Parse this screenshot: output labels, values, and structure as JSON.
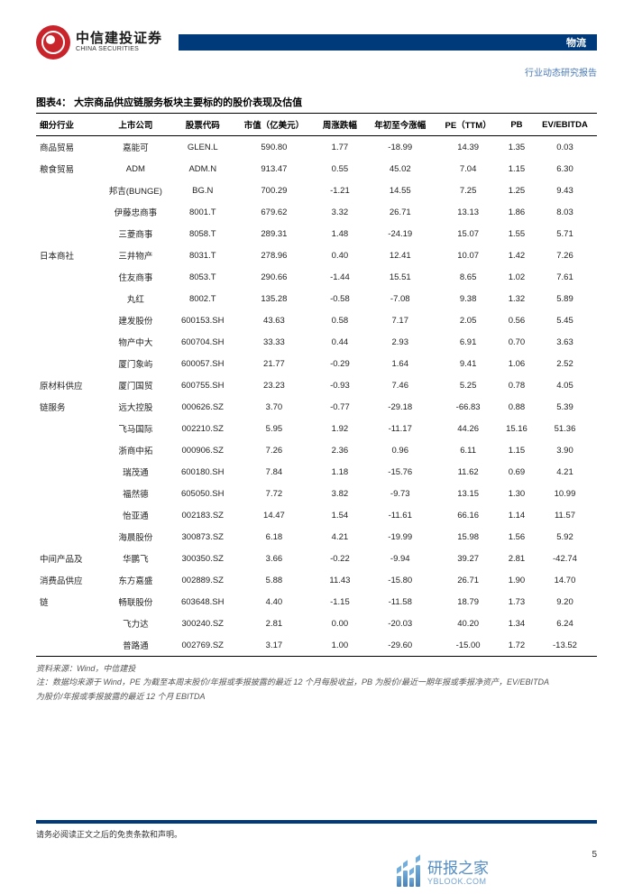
{
  "header": {
    "logo_cn": "中信建投证券",
    "logo_en": "CHINA SECURITIES",
    "tag": "物流",
    "subtitle": "行业动态研究报告"
  },
  "table": {
    "title": "图表4：  大宗商品供应链服务板块主要标的的股价表现及估值",
    "columns": [
      "细分行业",
      "上市公司",
      "股票代码",
      "市值（亿美元）",
      "周涨跌幅",
      "年初至今涨幅",
      "PE（TTM）",
      "PB",
      "EV/EBITDA"
    ],
    "rows": [
      {
        "cat": "商品贸易",
        "rs": 1,
        "c": [
          "嘉能可",
          "GLEN.L",
          "590.80",
          "1.77",
          "-18.99",
          "14.39",
          "1.35",
          "0.03"
        ]
      },
      {
        "cat": "粮食贸易",
        "rs": 2,
        "c": [
          "ADM",
          "ADM.N",
          "913.47",
          "0.55",
          "45.02",
          "7.04",
          "1.15",
          "6.30"
        ]
      },
      {
        "cat": "",
        "rs": 0,
        "c": [
          "邦吉(BUNGE)",
          "BG.N",
          "700.29",
          "-1.21",
          "14.55",
          "7.25",
          "1.25",
          "9.43"
        ]
      },
      {
        "cat": "",
        "rs": 0,
        "c": [
          "伊藤忠商事",
          "8001.T",
          "679.62",
          "3.32",
          "26.71",
          "13.13",
          "1.86",
          "8.03"
        ]
      },
      {
        "cat": "",
        "rs": 0,
        "c": [
          "三菱商事",
          "8058.T",
          "289.31",
          "1.48",
          "-24.19",
          "15.07",
          "1.55",
          "5.71"
        ]
      },
      {
        "cat": "日本商社",
        "rs": 1,
        "c": [
          "三井物产",
          "8031.T",
          "278.96",
          "0.40",
          "12.41",
          "10.07",
          "1.42",
          "7.26"
        ]
      },
      {
        "cat": "",
        "rs": 0,
        "c": [
          "住友商事",
          "8053.T",
          "290.66",
          "-1.44",
          "15.51",
          "8.65",
          "1.02",
          "7.61"
        ]
      },
      {
        "cat": "",
        "rs": 0,
        "c": [
          "丸红",
          "8002.T",
          "135.28",
          "-0.58",
          "-7.08",
          "9.38",
          "1.32",
          "5.89"
        ]
      },
      {
        "cat": "",
        "rs": 0,
        "c": [
          "建发股份",
          "600153.SH",
          "43.63",
          "0.58",
          "7.17",
          "2.05",
          "0.56",
          "5.45"
        ]
      },
      {
        "cat": "",
        "rs": 0,
        "c": [
          "物产中大",
          "600704.SH",
          "33.33",
          "0.44",
          "2.93",
          "6.91",
          "0.70",
          "3.63"
        ]
      },
      {
        "cat": "",
        "rs": 0,
        "c": [
          "厦门象屿",
          "600057.SH",
          "21.77",
          "-0.29",
          "1.64",
          "9.41",
          "1.06",
          "2.52"
        ]
      },
      {
        "cat": "原材料供应",
        "rs": 1,
        "c": [
          "厦门国贸",
          "600755.SH",
          "23.23",
          "-0.93",
          "7.46",
          "5.25",
          "0.78",
          "4.05"
        ]
      },
      {
        "cat": "链服务",
        "rs": 1,
        "c": [
          "远大控股",
          "000626.SZ",
          "3.70",
          "-0.77",
          "-29.18",
          "-66.83",
          "0.88",
          "5.39"
        ]
      },
      {
        "cat": "",
        "rs": 0,
        "c": [
          "飞马国际",
          "002210.SZ",
          "5.95",
          "1.92",
          "-11.17",
          "44.26",
          "15.16",
          "51.36"
        ]
      },
      {
        "cat": "",
        "rs": 0,
        "c": [
          "浙商中拓",
          "000906.SZ",
          "7.26",
          "2.36",
          "0.96",
          "6.11",
          "1.15",
          "3.90"
        ]
      },
      {
        "cat": "",
        "rs": 0,
        "c": [
          "瑞茂通",
          "600180.SH",
          "7.84",
          "1.18",
          "-15.76",
          "11.62",
          "0.69",
          "4.21"
        ]
      },
      {
        "cat": "",
        "rs": 0,
        "c": [
          "福然德",
          "605050.SH",
          "7.72",
          "3.82",
          "-9.73",
          "13.15",
          "1.30",
          "10.99"
        ]
      },
      {
        "cat": "",
        "rs": 0,
        "c": [
          "怡亚通",
          "002183.SZ",
          "14.47",
          "1.54",
          "-11.61",
          "66.16",
          "1.14",
          "11.57"
        ]
      },
      {
        "cat": "",
        "rs": 0,
        "c": [
          "海晨股份",
          "300873.SZ",
          "6.18",
          "4.21",
          "-19.99",
          "15.98",
          "1.56",
          "5.92"
        ]
      },
      {
        "cat": "中间产品及",
        "rs": 1,
        "c": [
          "华鹏飞",
          "300350.SZ",
          "3.66",
          "-0.22",
          "-9.94",
          "39.27",
          "2.81",
          "-42.74"
        ]
      },
      {
        "cat": "消费品供应",
        "rs": 1,
        "c": [
          "东方嘉盛",
          "002889.SZ",
          "5.88",
          "11.43",
          "-15.80",
          "26.71",
          "1.90",
          "14.70"
        ]
      },
      {
        "cat": "链",
        "rs": 1,
        "c": [
          "畅联股份",
          "603648.SH",
          "4.40",
          "-1.15",
          "-11.58",
          "18.79",
          "1.73",
          "9.20"
        ]
      },
      {
        "cat": "",
        "rs": 0,
        "c": [
          "飞力达",
          "300240.SZ",
          "2.81",
          "0.00",
          "-20.03",
          "40.20",
          "1.34",
          "6.24"
        ]
      },
      {
        "cat": "",
        "rs": 0,
        "c": [
          "普路通",
          "002769.SZ",
          "3.17",
          "1.00",
          "-29.60",
          "-15.00",
          "1.72",
          "-13.52"
        ]
      }
    ],
    "source": "资料来源：Wind，中信建投",
    "note1": "注：数据均来源于 Wind，PE 为截至本周末股价/年报或季报披露的最近 12 个月每股收益，PB 为股价/最近一期年报或季报净资产，EV/EBITDA",
    "note2": "为股价/年报或季报披露的最近 12 个月 EBITDA"
  },
  "footer": {
    "disclaimer": "请务必阅读正文之后的免责条款和声明。",
    "page": "5"
  },
  "watermark": {
    "cn": "研报之家",
    "en": "YBLOOK.COM",
    "bar_heights": [
      12,
      18,
      10,
      24
    ]
  }
}
